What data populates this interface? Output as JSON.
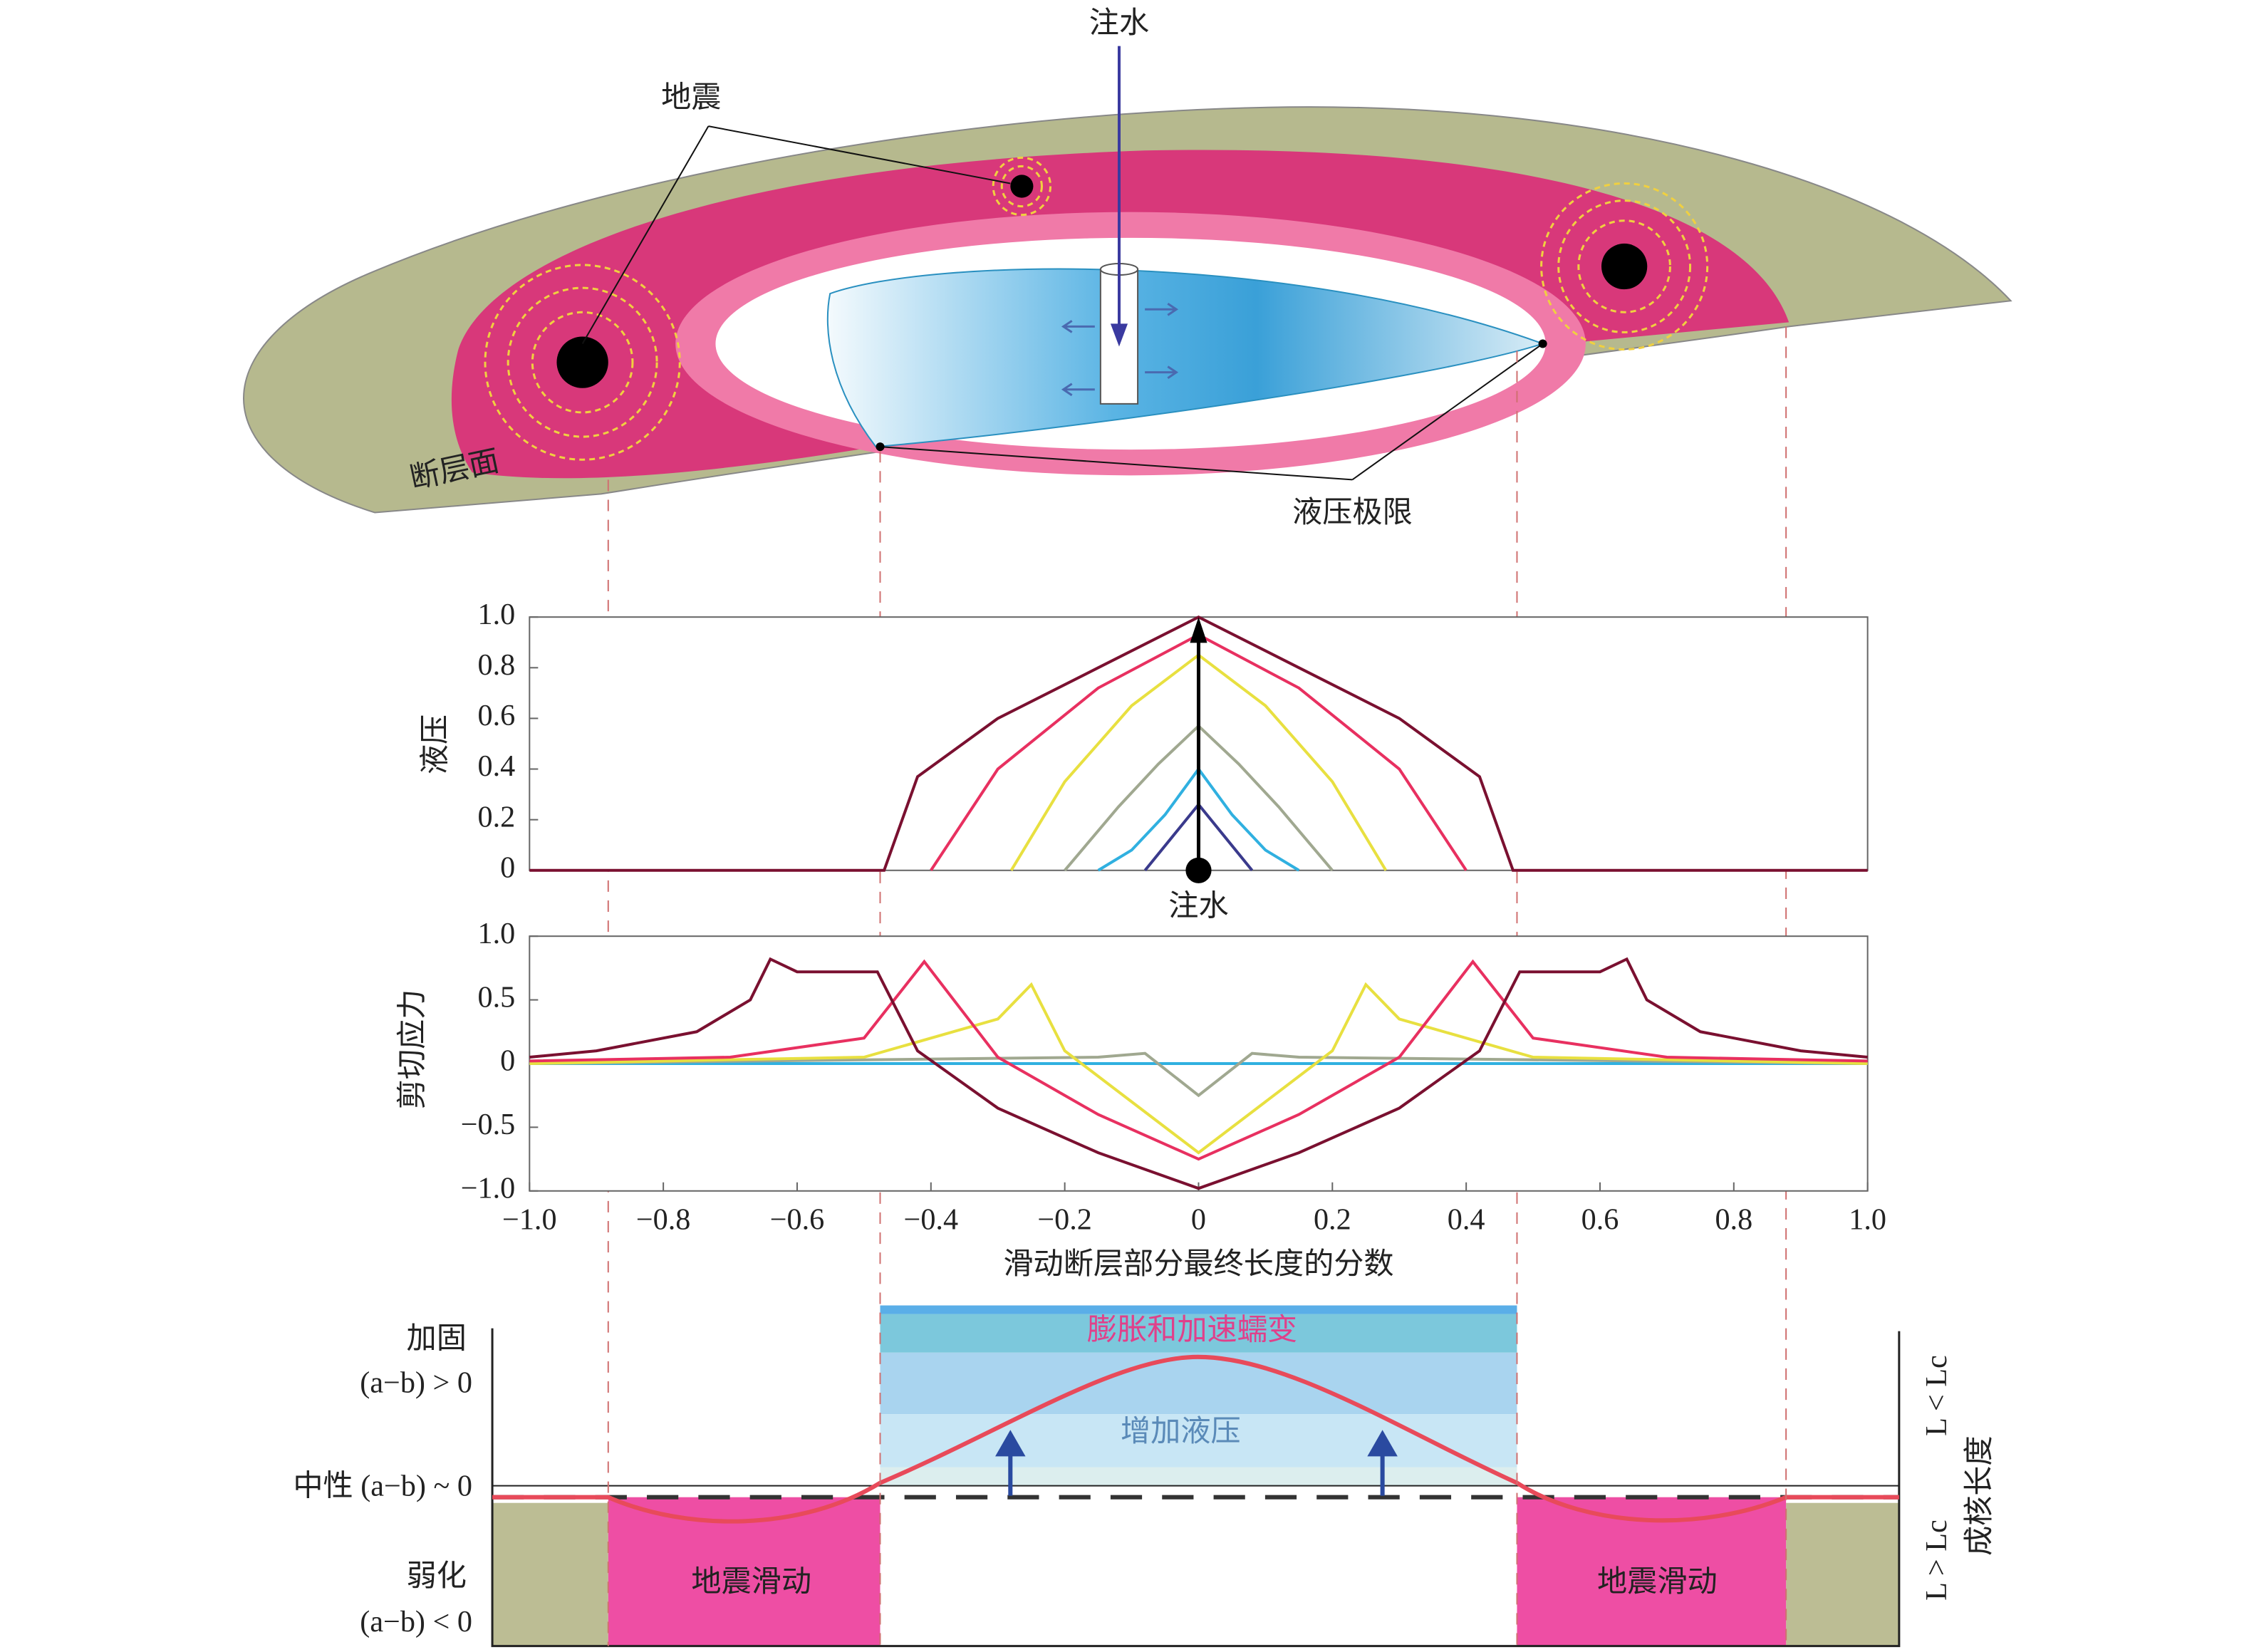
{
  "diagram": {
    "top": {
      "injection": "注水",
      "earthquakes": "地震",
      "fault_plane": "断层面",
      "pressure_limit": "液压极限"
    },
    "bottom": {
      "strengthening": "加固",
      "strengthening_condition": "(a−b) > 0",
      "neutral": "中性 (a−b) ~ 0",
      "weakening": "弱化",
      "weakening_condition": "(a−b) < 0",
      "dilatancy": "膨胀和加速蠕变",
      "pressure_increase": "增加液压",
      "seismic_slip_left": "地震滑动",
      "seismic_slip_right": "地震滑动",
      "stable": "L < Lc",
      "nucleation_length": "成核长度",
      "unstable": "L > Lc"
    }
  },
  "chart_data": [
    {
      "type": "line",
      "y_label": "液压",
      "annotation": "注水",
      "xlim": [
        -1,
        1
      ],
      "ylim": [
        0,
        1
      ],
      "yticks": [
        0,
        0.2,
        0.4,
        0.6,
        0.8,
        {
          "value": 1,
          "label": "1.0"
        }
      ],
      "series": [
        {
          "color": "#3a3a8c",
          "x": [
            -0.08,
            -0.04,
            0,
            0.04,
            0.08
          ],
          "values": [
            0,
            0.13,
            0.26,
            0.13,
            0
          ]
        },
        {
          "color": "#30b0e0",
          "x": [
            -0.15,
            -0.1,
            -0.05,
            0,
            0.05,
            0.1,
            0.15
          ],
          "values": [
            0,
            0.08,
            0.22,
            0.4,
            0.22,
            0.08,
            0
          ]
        },
        {
          "color": "#a0a890",
          "x": [
            -0.2,
            -0.12,
            -0.06,
            0,
            0.06,
            0.12,
            0.2
          ],
          "values": [
            0,
            0.25,
            0.42,
            0.57,
            0.42,
            0.25,
            0
          ]
        },
        {
          "color": "#e8e040",
          "x": [
            -0.28,
            -0.2,
            -0.1,
            0,
            0.1,
            0.2,
            0.28
          ],
          "values": [
            0,
            0.35,
            0.65,
            0.85,
            0.65,
            0.35,
            0
          ]
        },
        {
          "color": "#e83060",
          "x": [
            -0.4,
            -0.3,
            -0.15,
            0,
            0.15,
            0.3,
            0.4
          ],
          "values": [
            0,
            0.4,
            0.72,
            0.93,
            0.72,
            0.4,
            0
          ]
        },
        {
          "color": "#7a1030",
          "x": [
            -1,
            -0.47,
            -0.42,
            -0.3,
            -0.15,
            0,
            0.15,
            0.3,
            0.42,
            0.47,
            1
          ],
          "values": [
            0,
            0,
            0.37,
            0.6,
            0.8,
            1,
            0.8,
            0.6,
            0.37,
            0,
            0
          ]
        }
      ]
    },
    {
      "type": "line",
      "y_label": "剪切应力",
      "x_label": "滑动断层部分最终长度的分数",
      "xlim": [
        -1,
        1
      ],
      "ylim": [
        -1,
        1
      ],
      "xticks": [
        {
          "value": -1,
          "label": "−1.0"
        },
        {
          "value": -0.8,
          "label": "−0.8"
        },
        {
          "value": -0.6,
          "label": "−0.6"
        },
        {
          "value": -0.4,
          "label": "−0.4"
        },
        {
          "value": -0.2,
          "label": "−0.2"
        },
        0,
        0.2,
        0.4,
        0.6,
        0.8,
        {
          "value": 1,
          "label": "1.0"
        }
      ],
      "yticks": [
        {
          "value": -1,
          "label": "−1.0"
        },
        {
          "value": -0.5,
          "label": "−0.5"
        },
        0,
        0.5,
        {
          "value": 1,
          "label": "1.0"
        }
      ],
      "series": [
        {
          "color": "#30b0e0",
          "x": [
            -1,
            1
          ],
          "values": [
            0,
            0
          ]
        },
        {
          "color": "#a0a890",
          "x": [
            -1,
            -0.15,
            -0.08,
            0,
            0.08,
            0.15,
            1
          ],
          "values": [
            0,
            0.05,
            0.08,
            -0.25,
            0.08,
            0.05,
            0
          ]
        },
        {
          "color": "#e8e040",
          "x": [
            -1,
            -0.5,
            -0.3,
            -0.25,
            -0.2,
            -0.1,
            0,
            0.1,
            0.2,
            0.25,
            0.3,
            0.5,
            1
          ],
          "values": [
            0,
            0.05,
            0.35,
            0.62,
            0.1,
            -0.3,
            -0.7,
            -0.3,
            0.1,
            0.62,
            0.35,
            0.05,
            0
          ]
        },
        {
          "color": "#e83060",
          "x": [
            -1,
            -0.7,
            -0.5,
            -0.41,
            -0.3,
            -0.15,
            0,
            0.15,
            0.3,
            0.41,
            0.5,
            0.7,
            1
          ],
          "values": [
            0.02,
            0.05,
            0.2,
            0.8,
            0.05,
            -0.4,
            -0.75,
            -0.4,
            0.05,
            0.8,
            0.2,
            0.05,
            0.02
          ]
        },
        {
          "color": "#7a1030",
          "x": [
            -1,
            -0.9,
            -0.75,
            -0.67,
            -0.64,
            -0.6,
            -0.48,
            -0.42,
            -0.3,
            -0.15,
            0,
            0.15,
            0.3,
            0.42,
            0.48,
            0.6,
            0.64,
            0.67,
            0.75,
            0.9,
            1
          ],
          "values": [
            0.05,
            0.1,
            0.25,
            0.5,
            0.82,
            0.72,
            0.72,
            0.1,
            -0.35,
            -0.7,
            -0.98,
            -0.7,
            -0.35,
            0.1,
            0.72,
            0.72,
            0.82,
            0.5,
            0.25,
            0.1,
            0.05
          ]
        }
      ]
    }
  ]
}
